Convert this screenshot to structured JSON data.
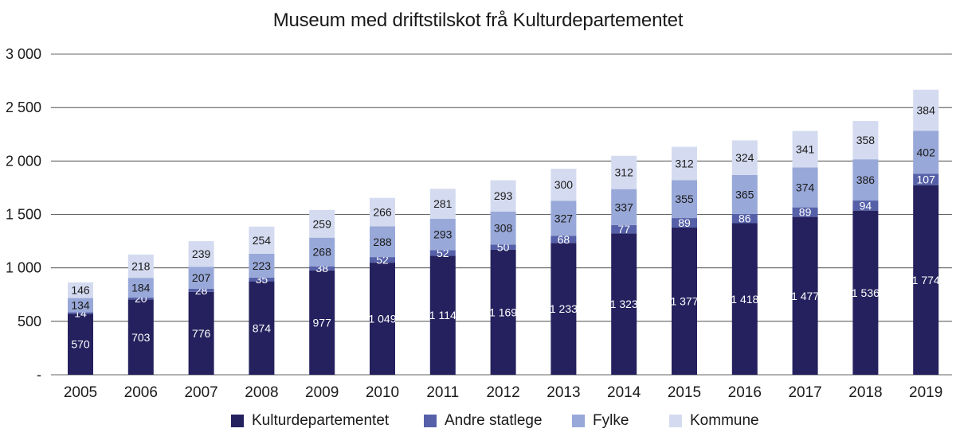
{
  "chart_data": {
    "type": "bar",
    "stacked": true,
    "title": "Museum med driftstilskot frå Kulturdepartementet",
    "xlabel": "",
    "ylabel": "",
    "ylim": [
      0,
      3000
    ],
    "yticks": [
      0,
      500,
      1000,
      1500,
      2000,
      2500,
      3000
    ],
    "ytick_labels": [
      "-",
      "500",
      "1 000",
      "1 500",
      "2 000",
      "2 500",
      "3 000"
    ],
    "grid": true,
    "legend_position": "bottom",
    "categories": [
      "2005",
      "2006",
      "2007",
      "2008",
      "2009",
      "2010",
      "2011",
      "2012",
      "2013",
      "2014",
      "2015",
      "2016",
      "2017",
      "2018",
      "2019"
    ],
    "series": [
      {
        "name": "Kulturdepartementet",
        "color": "#25215e",
        "values": [
          570,
          703,
          776,
          874,
          977,
          1049,
          1114,
          1169,
          1233,
          1323,
          1377,
          1418,
          1477,
          1536,
          1774
        ],
        "labels": [
          "570",
          "703",
          "776",
          "874",
          "977",
          "1 049",
          "1 114",
          "1 169",
          "1 233",
          "1 323",
          "1 377",
          "1 418",
          "1 477",
          "1 536",
          "1 774"
        ]
      },
      {
        "name": "Andre statlege",
        "color": "#5560a8",
        "values": [
          14,
          20,
          28,
          35,
          38,
          52,
          52,
          50,
          68,
          77,
          89,
          86,
          89,
          94,
          107
        ],
        "labels": [
          "14",
          "20",
          "28",
          "35",
          "38",
          "52",
          "52",
          "50",
          "68",
          "77",
          "89",
          "86",
          "89",
          "94",
          "107"
        ]
      },
      {
        "name": "Fylke",
        "color": "#98a8d8",
        "values": [
          134,
          184,
          207,
          223,
          268,
          288,
          293,
          308,
          327,
          337,
          355,
          365,
          374,
          386,
          402
        ],
        "labels": [
          "134",
          "184",
          "207",
          "223",
          "268",
          "288",
          "293",
          "308",
          "327",
          "337",
          "355",
          "365",
          "374",
          "386",
          "402"
        ]
      },
      {
        "name": "Kommune",
        "color": "#d4dbf0",
        "values": [
          146,
          218,
          239,
          254,
          259,
          266,
          281,
          293,
          300,
          312,
          312,
          324,
          341,
          358,
          384
        ],
        "labels": [
          "146",
          "218",
          "239",
          "254",
          "259",
          "266",
          "281",
          "293",
          "300",
          "312",
          "312",
          "324",
          "341",
          "358",
          "384"
        ]
      }
    ]
  }
}
